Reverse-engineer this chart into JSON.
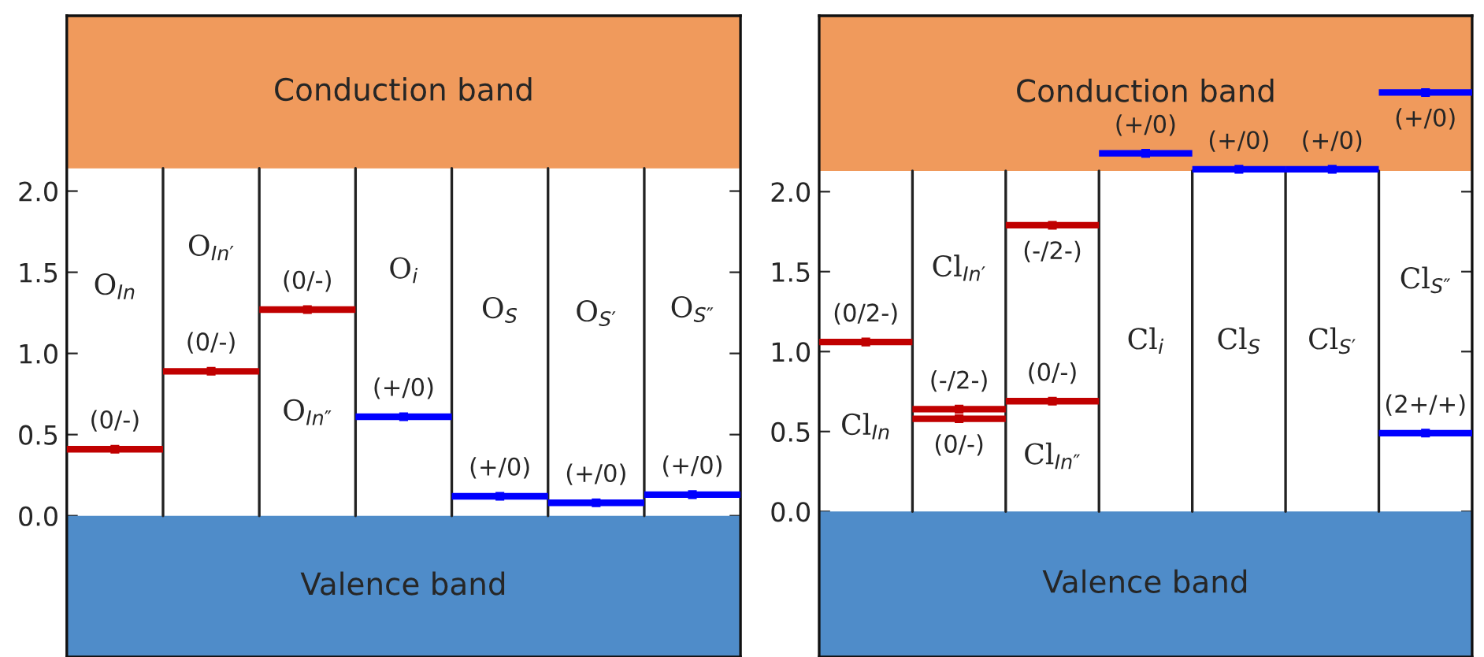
{
  "chart_data": [
    {
      "type": "scatter",
      "categories": [
        "O$_{In}$",
        "O$_{In′}$",
        "O$_{In″}$",
        "O$_{i}$",
        "O$_{S}$",
        "O$_{S′}$",
        "O$_{S″}$"
      ],
      "series": [
        {
          "color": "#c00000",
          "x": [
            "O$_{In}$",
            "O$_{In′}$",
            "O$_{In″}$"
          ],
          "values": [
            0.41,
            0.89,
            1.27
          ]
        },
        {
          "color": "#0000ff",
          "x": [
            "O$_{i}$",
            "O$_{S}$",
            "O$_{S′}$",
            "O$_{S″}$"
          ],
          "values": [
            0.61,
            0.12,
            0.08,
            0.13
          ]
        }
      ],
      "marker": "square",
      "ylim": [
        -0.87,
        3.08
      ],
      "yticks": [
        {
          "value": 0,
          "label": "0.0"
        },
        {
          "value": 0.5,
          "label": "0.5"
        },
        {
          "value": 1,
          "label": "1.0"
        },
        {
          "value": 1.5,
          "label": "1.5"
        },
        {
          "value": 2,
          "label": "2.0"
        }
      ],
      "bands": [
        {
          "axis": "y",
          "from": 2.14,
          "to": 3.08,
          "label": "Conduction band",
          "color": "#f09a5c"
        },
        {
          "axis": "y",
          "from": -0.87,
          "to": 0,
          "label": "Valence band",
          "color": "#4f8cc9"
        }
      ],
      "annotations": [
        {
          "text": "(0/-)",
          "x": "O$_{In}$",
          "y": 0.41
        },
        {
          "text": "(0/-)",
          "x": "O$_{In′}$",
          "y": 0.89
        },
        {
          "text": "(0/-)",
          "x": "O$_{In″}$",
          "y": 1.27
        },
        {
          "text": "(+/0)",
          "x": "O$_{i}$",
          "y": 0.61
        },
        {
          "text": "(+/0)",
          "x": "O$_{S}$",
          "y": 0.12
        },
        {
          "text": "(+/0)",
          "x": "O$_{S′}$",
          "y": 0.08
        },
        {
          "text": "(+/0)",
          "x": "O$_{S″}$",
          "y": 0.13
        }
      ],
      "grid": false,
      "legend": false
    },
    {
      "type": "scatter",
      "categories": [
        "Cl$_{In}$",
        "Cl$_{In′}$",
        "Cl$_{In″}$",
        "Cl$_{i}$",
        "Cl$_{S}$",
        "Cl$_{S′}$",
        "Cl$_{S″}$"
      ],
      "series": [
        {
          "color": "#c00000",
          "x": [
            "Cl$_{In}$",
            "Cl$_{In′}$",
            "Cl$_{In′}$",
            "Cl$_{In″}$",
            "Cl$_{In″}$"
          ],
          "values": [
            1.06,
            0.64,
            0.58,
            1.79,
            0.69
          ]
        },
        {
          "color": "#0000ff",
          "x": [
            "Cl$_{i}$",
            "Cl$_{S}$",
            "Cl$_{S′}$",
            "Cl$_{S″}$",
            "Cl$_{S″}$"
          ],
          "values": [
            2.24,
            2.14,
            2.14,
            2.62,
            0.49
          ]
        }
      ],
      "marker": "square",
      "ylim": [
        -0.91,
        3.1
      ],
      "yticks": [
        {
          "value": 0,
          "label": "0.0"
        },
        {
          "value": 0.5,
          "label": "0.5"
        },
        {
          "value": 1,
          "label": "1.0"
        },
        {
          "value": 1.5,
          "label": "1.5"
        },
        {
          "value": 2,
          "label": "2.0"
        },
        {
          "value": 2.4,
          "label": null
        },
        {
          "value": 2.9,
          "label": null
        }
      ],
      "bands": [
        {
          "axis": "y",
          "from": 2.13,
          "to": 3.1,
          "label": "Conduction band",
          "color": "#f09a5c"
        },
        {
          "axis": "y",
          "from": -0.91,
          "to": 0,
          "label": "Valence band",
          "color": "#4f8cc9"
        }
      ],
      "annotations": [
        {
          "text": "(0/2-)",
          "x": "Cl$_{In}$",
          "y": 1.06
        },
        {
          "text": "(-/2-)",
          "x": "Cl$_{In′}$",
          "y": 0.64
        },
        {
          "text": "(0/-)",
          "x": "Cl$_{In′}$",
          "y": 0.58
        },
        {
          "text": "(-/2-)",
          "x": "Cl$_{In″}$",
          "y": 1.79
        },
        {
          "text": "(0/-)",
          "x": "Cl$_{In″}$",
          "y": 0.69
        },
        {
          "text": "(+/0)",
          "x": "Cl$_{i}$",
          "y": 2.24
        },
        {
          "text": "(+/0)",
          "x": "Cl$_{S}$",
          "y": 2.14
        },
        {
          "text": "(+/0)",
          "x": "Cl$_{S′}$",
          "y": 2.14
        },
        {
          "text": "(+/0)",
          "x": "Cl$_{S″}$",
          "y": 2.62
        },
        {
          "text": "(2+/+)",
          "x": "Cl$_{S″}$",
          "y": 0.49
        }
      ],
      "grid": false,
      "legend": false
    }
  ]
}
